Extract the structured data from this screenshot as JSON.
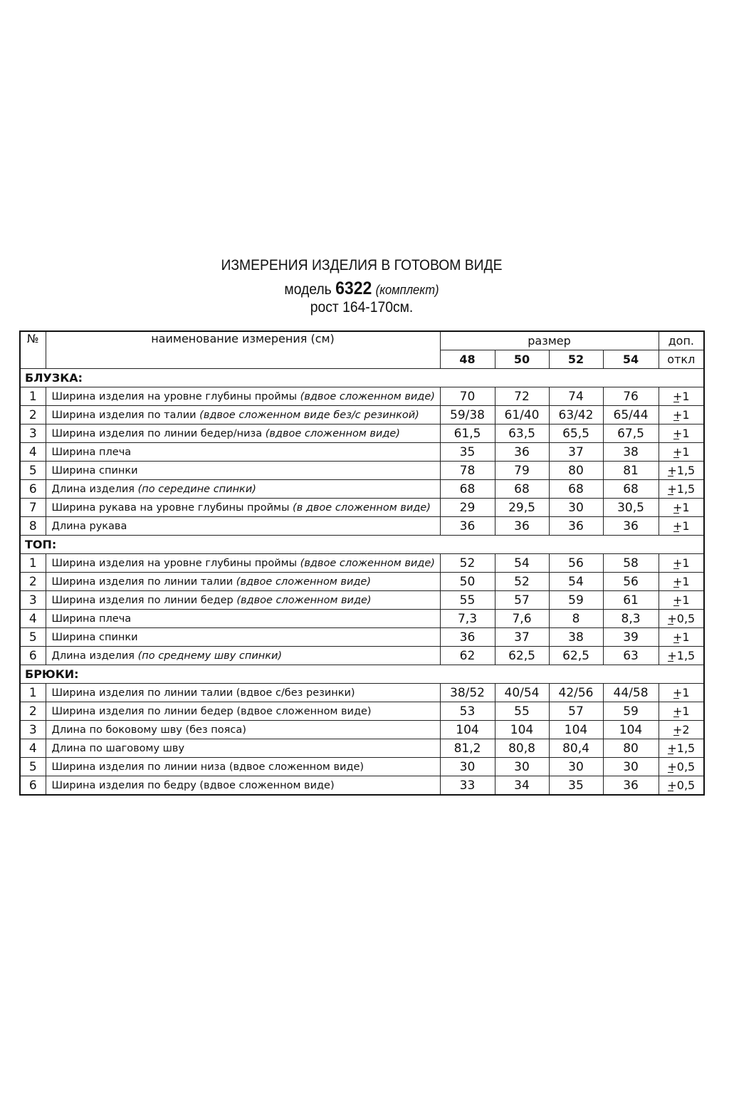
{
  "header": {
    "title": "ИЗМЕРЕНИЯ ИЗДЕЛИЯ В ГОТОВОМ ВИДЕ",
    "model_label": "модель",
    "model_number": "6322",
    "model_note": "(комплект)",
    "height": "рост 164-170см."
  },
  "table": {
    "col_no": "№",
    "col_name": "наименование измерения (см)",
    "col_size": "размер",
    "col_tol_1": "доп.",
    "col_tol_2": "откл",
    "sizes": [
      "48",
      "50",
      "52",
      "54"
    ],
    "sections": [
      {
        "title": "БЛУЗКА:",
        "rows": [
          {
            "no": "1",
            "name": "Ширина изделия на уровне глубины проймы ",
            "note": "(вдвое сложенном виде)",
            "values": [
              "70",
              "72",
              "74",
              "76"
            ],
            "tol": "+1"
          },
          {
            "no": "2",
            "name": "Ширина изделия по талии ",
            "note": "(вдвое сложенном виде без/с резинкой)",
            "values": [
              "59/38",
              "61/40",
              "63/42",
              "65/44"
            ],
            "tol": "+1"
          },
          {
            "no": "3",
            "name": "Ширина изделия по линии бедер/низа ",
            "note": "(вдвое сложенном виде)",
            "values": [
              "61,5",
              "63,5",
              "65,5",
              "67,5"
            ],
            "tol": "+1"
          },
          {
            "no": "4",
            "name": "Ширина плеча",
            "note": "",
            "values": [
              "35",
              "36",
              "37",
              "38"
            ],
            "tol": "+1"
          },
          {
            "no": "5",
            "name": "Ширина спинки",
            "note": "",
            "values": [
              "78",
              "79",
              "80",
              "81"
            ],
            "tol": "+1,5"
          },
          {
            "no": "6",
            "name": "Длина изделия ",
            "note": "(по середине спинки)",
            "values": [
              "68",
              "68",
              "68",
              "68"
            ],
            "tol": "+1,5"
          },
          {
            "no": "7",
            "name": "Ширина рукава на уровне глубины проймы ",
            "note": "(в двое сложенном виде)",
            "values": [
              "29",
              "29,5",
              "30",
              "30,5"
            ],
            "tol": "+1"
          },
          {
            "no": "8",
            "name": "Длина рукава",
            "note": "",
            "values": [
              "36",
              "36",
              "36",
              "36"
            ],
            "tol": "+1"
          }
        ]
      },
      {
        "title": "ТОП:",
        "rows": [
          {
            "no": "1",
            "name": "Ширина изделия на уровне глубины проймы ",
            "note": "(вдвое сложенном виде)",
            "values": [
              "52",
              "54",
              "56",
              "58"
            ],
            "tol": "+1"
          },
          {
            "no": "2",
            "name": "Ширина изделия по линии талии ",
            "note": "(вдвое сложенном виде)",
            "values": [
              "50",
              "52",
              "54",
              "56"
            ],
            "tol": "+1"
          },
          {
            "no": "3",
            "name": "Ширина изделия по линии бедер ",
            "note": "(вдвое сложенном виде)",
            "values": [
              "55",
              "57",
              "59",
              "61"
            ],
            "tol": "+1"
          },
          {
            "no": "4",
            "name": "Ширина плеча",
            "note": "",
            "values": [
              "7,3",
              "7,6",
              "8",
              "8,3"
            ],
            "tol": "+0,5"
          },
          {
            "no": "5",
            "name": "Ширина спинки",
            "note": "",
            "values": [
              "36",
              "37",
              "38",
              "39"
            ],
            "tol": "+1"
          },
          {
            "no": "6",
            "name": "Длина изделия ",
            "note": "(по среднему шву спинки)",
            "values": [
              "62",
              "62,5",
              "62,5",
              "63"
            ],
            "tol": "+1,5"
          }
        ]
      },
      {
        "title": "БРЮКИ:",
        "rows": [
          {
            "no": "1",
            "name": "Ширина изделия по линии талии (вдвое с/без резинки)",
            "note": "",
            "values": [
              "38/52",
              "40/54",
              "42/56",
              "44/58"
            ],
            "tol": "+1"
          },
          {
            "no": "2",
            "name": "Ширина изделия по линии бедер (вдвое сложенном виде)",
            "note": "",
            "values": [
              "53",
              "55",
              "57",
              "59"
            ],
            "tol": "+1"
          },
          {
            "no": "3",
            "name": "Длина по боковому шву (без пояса)",
            "note": "",
            "values": [
              "104",
              "104",
              "104",
              "104"
            ],
            "tol": "+2"
          },
          {
            "no": "4",
            "name": "Длина по шаговому шву",
            "note": "",
            "values": [
              "81,2",
              "80,8",
              "80,4",
              "80"
            ],
            "tol": "+1,5"
          },
          {
            "no": "5",
            "name": "Ширина изделия по линии низа (вдвое сложенном виде)",
            "note": "",
            "values": [
              "30",
              "30",
              "30",
              "30"
            ],
            "tol": "+0,5"
          },
          {
            "no": "6",
            "name": "Ширина изделия по бедру (вдвое сложенном виде)",
            "note": "",
            "values": [
              "33",
              "34",
              "35",
              "36"
            ],
            "tol": "+0,5"
          }
        ]
      }
    ]
  }
}
